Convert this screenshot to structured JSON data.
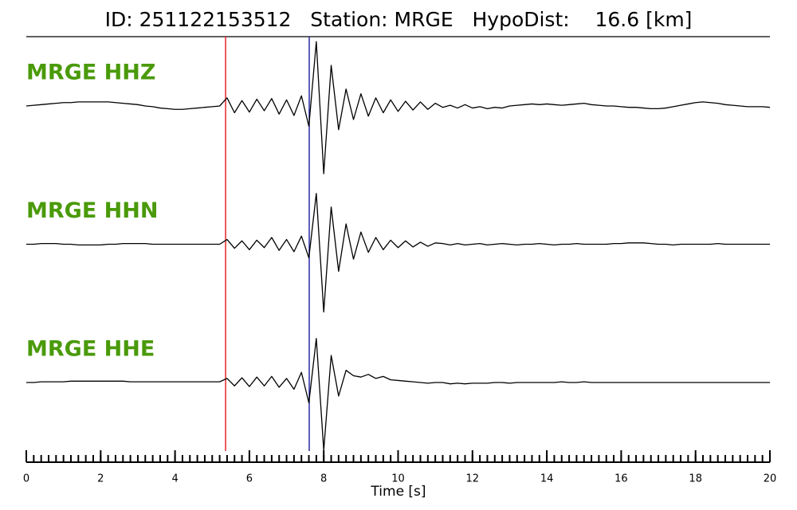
{
  "chart_data": {
    "type": "seismogram",
    "title": "ID: 251122153512   Station: MRGE   HypoDist:    16.6 [km]",
    "xlabel": "Time [s]",
    "xlim": [
      0,
      20
    ],
    "xticks": [
      0,
      2,
      4,
      6,
      8,
      10,
      12,
      14,
      16,
      18,
      20
    ],
    "xticks_minor": [
      0,
      0.2,
      0.4,
      0.6,
      0.8,
      1,
      1.2,
      1.4,
      1.6,
      1.8,
      2,
      2.2,
      2.4,
      2.6,
      2.8,
      3,
      3.2,
      3.4,
      3.6,
      3.8,
      4,
      4.2,
      4.4,
      4.6,
      4.8,
      5,
      5.2,
      5.4,
      5.6,
      5.8,
      6,
      6.2,
      6.4,
      6.6,
      6.8,
      7,
      7.2,
      7.4,
      7.6,
      7.8,
      8,
      8.2,
      8.4,
      8.6,
      8.8,
      9,
      9.2,
      9.4,
      9.6,
      9.8,
      10,
      10.2,
      10.4,
      10.6,
      10.8,
      11,
      11.2,
      11.4,
      11.6,
      11.8,
      12,
      12.2,
      12.4,
      12.6,
      12.8,
      13,
      13.2,
      13.4,
      13.6,
      13.8,
      14,
      14.2,
      14.4,
      14.6,
      14.8,
      15,
      15.2,
      15.4,
      15.6,
      15.8,
      16,
      16.2,
      16.4,
      16.6,
      16.8,
      17,
      17.2,
      17.4,
      17.6,
      17.8,
      18,
      18.2,
      18.4,
      18.6,
      18.8,
      19,
      19.2,
      19.4,
      19.6,
      19.8,
      20
    ],
    "picks": [
      {
        "time": 5.36,
        "color": "#e8242a"
      },
      {
        "time": 7.61,
        "color": "#2a2aa8"
      }
    ],
    "label_color": "#4a9a0a",
    "x": [
      0,
      0.2,
      0.4,
      0.6,
      0.8,
      1,
      1.2,
      1.4,
      1.6,
      1.8,
      2,
      2.2,
      2.4,
      2.6,
      2.8,
      3,
      3.2,
      3.4,
      3.6,
      3.8,
      4,
      4.2,
      4.4,
      4.6,
      4.8,
      5,
      5.2,
      5.4,
      5.6,
      5.8,
      6,
      6.2,
      6.4,
      6.6,
      6.8,
      7,
      7.2,
      7.4,
      7.6,
      7.8,
      8,
      8.2,
      8.4,
      8.6,
      8.8,
      9,
      9.2,
      9.4,
      9.6,
      9.8,
      10,
      10.2,
      10.4,
      10.6,
      10.8,
      11,
      11.2,
      11.4,
      11.6,
      11.8,
      12,
      12.2,
      12.4,
      12.6,
      12.8,
      13,
      13.2,
      13.4,
      13.6,
      13.8,
      14,
      14.2,
      14.4,
      14.6,
      14.8,
      15,
      15.2,
      15.4,
      15.6,
      15.8,
      16,
      16.2,
      16.4,
      16.6,
      16.8,
      17,
      17.2,
      17.4,
      17.6,
      17.8,
      18,
      18.2,
      18.4,
      18.6,
      18.8,
      19,
      19.2,
      19.4,
      19.6,
      19.8,
      20
    ],
    "series": [
      {
        "name": "MRGE HHZ",
        "color": "#000000",
        "values": [
          0,
          0.01,
          0.02,
          0.03,
          0.04,
          0.05,
          0.05,
          0.06,
          0.06,
          0.06,
          0.06,
          0.06,
          0.05,
          0.04,
          0.03,
          0.02,
          0,
          -0.01,
          -0.03,
          -0.04,
          -0.05,
          -0.05,
          -0.04,
          -0.03,
          -0.02,
          -0.01,
          0,
          0.12,
          -0.1,
          0.08,
          -0.09,
          0.1,
          -0.07,
          0.11,
          -0.12,
          0.09,
          -0.14,
          0.15,
          -0.3,
          0.95,
          -1,
          0.6,
          -0.35,
          0.25,
          -0.2,
          0.18,
          -0.15,
          0.12,
          -0.1,
          0.09,
          -0.08,
          0.07,
          -0.06,
          0.06,
          -0.05,
          0.04,
          -0.02,
          0.01,
          -0.03,
          0.02,
          -0.03,
          -0.01,
          -0.04,
          -0.02,
          -0.03,
          0,
          0.01,
          0.02,
          0.03,
          0.02,
          0.03,
          0.02,
          0.01,
          0.02,
          0.03,
          0.04,
          0.02,
          0.01,
          0,
          0,
          -0.01,
          -0.02,
          -0.02,
          -0.03,
          -0.04,
          -0.04,
          -0.03,
          -0.01,
          0.01,
          0.03,
          0.05,
          0.06,
          0.05,
          0.04,
          0.02,
          0.01,
          0,
          -0.01,
          -0.01,
          -0.01,
          -0.02
        ]
      },
      {
        "name": "MRGE HHN",
        "color": "#000000",
        "values": [
          0,
          0,
          0.01,
          0.01,
          0.01,
          0,
          0,
          -0.01,
          -0.01,
          -0.01,
          -0.01,
          0,
          0,
          0.01,
          0.01,
          0.01,
          0.01,
          0,
          0,
          0,
          0,
          0,
          0,
          0,
          0,
          0,
          0,
          0.07,
          -0.06,
          0.05,
          -0.08,
          0.06,
          -0.05,
          0.1,
          -0.09,
          0.07,
          -0.11,
          0.12,
          -0.2,
          0.75,
          -1,
          0.55,
          -0.4,
          0.3,
          -0.22,
          0.18,
          -0.12,
          0.1,
          -0.08,
          0.06,
          -0.05,
          0.05,
          -0.04,
          0.03,
          -0.03,
          0.02,
          0.01,
          -0.01,
          0.01,
          -0.01,
          0,
          0.01,
          -0.01,
          0,
          0.01,
          0,
          -0.01,
          0,
          0,
          0.01,
          0,
          -0.01,
          0,
          0,
          0.01,
          0,
          0,
          0,
          0,
          0.01,
          0.01,
          0.02,
          0.02,
          0.02,
          0.01,
          0,
          0,
          -0.01,
          0,
          0,
          0,
          0,
          0,
          0.01,
          0,
          0,
          0,
          0,
          0,
          0,
          0
        ]
      },
      {
        "name": "MRGE HHE",
        "color": "#000000",
        "values": [
          0,
          0,
          0.01,
          0.01,
          0.01,
          0.01,
          0.02,
          0.02,
          0.02,
          0.02,
          0.02,
          0.02,
          0.02,
          0.02,
          0.01,
          0.01,
          0.01,
          0.01,
          0.01,
          0.01,
          0.01,
          0.01,
          0.01,
          0.01,
          0.01,
          0.01,
          0.01,
          0.06,
          -0.05,
          0.07,
          -0.06,
          0.08,
          -0.05,
          0.09,
          -0.07,
          0.06,
          -0.1,
          0.15,
          -0.3,
          0.65,
          -1,
          0.4,
          -0.2,
          0.18,
          0.1,
          0.08,
          0.12,
          0.06,
          0.09,
          0.04,
          0.03,
          0.02,
          0.01,
          0,
          -0.01,
          0,
          0,
          -0.02,
          -0.01,
          -0.02,
          -0.01,
          -0.01,
          -0.01,
          0,
          0,
          -0.01,
          0,
          0,
          0,
          0,
          0,
          0,
          0.01,
          0,
          0,
          0.01,
          0,
          0,
          0,
          0,
          0,
          0,
          0,
          0,
          0,
          0,
          0,
          0,
          0,
          0,
          0,
          0,
          0,
          0,
          0,
          0,
          0,
          0,
          0,
          0,
          0
        ]
      }
    ]
  }
}
